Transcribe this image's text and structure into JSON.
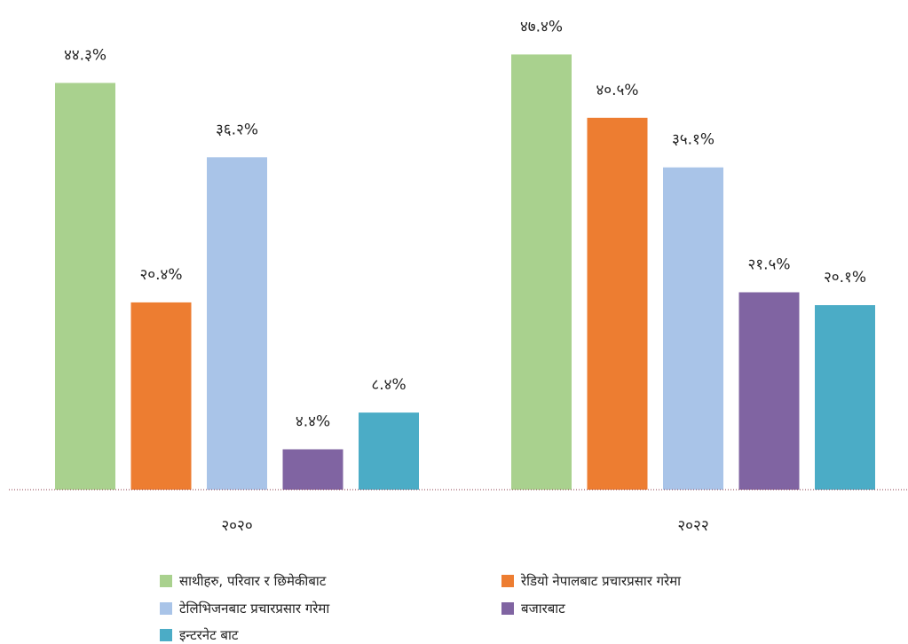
{
  "chart_data": {
    "type": "bar",
    "categories": [
      "२०२०",
      "२०२२"
    ],
    "series": [
      {
        "name": "साथीहरु,  परिवार र छिमेकीबाट",
        "color": "#A9D18E",
        "values": [
          44.3,
          47.4
        ],
        "labels": [
          "४४.३%",
          "४७.४%"
        ]
      },
      {
        "name": "रेडियो नेपालबाट प्रचारप्रसार गरेमा",
        "color": "#ED7D31",
        "values": [
          20.4,
          40.5
        ],
        "labels": [
          "२०.४%",
          "४०.५%"
        ]
      },
      {
        "name": "टेलिभिजनबाट प्रचारप्रसार गरेमा",
        "color": "#A9C4E8",
        "values": [
          36.2,
          35.1
        ],
        "labels": [
          "३६.२%",
          "३५.१%"
        ]
      },
      {
        "name": "बजारबाट",
        "color": "#8064A2",
        "values": [
          4.4,
          21.5
        ],
        "labels": [
          "४.४%",
          "२१.५%"
        ]
      },
      {
        "name": "इन्टरनेट बाट",
        "color": "#4BACC6",
        "values": [
          8.4,
          20.1
        ],
        "labels": [
          "८.४%",
          "२०.१%"
        ]
      }
    ],
    "ylim": [
      0,
      50
    ],
    "grid": false,
    "legend_position": "bottom"
  }
}
